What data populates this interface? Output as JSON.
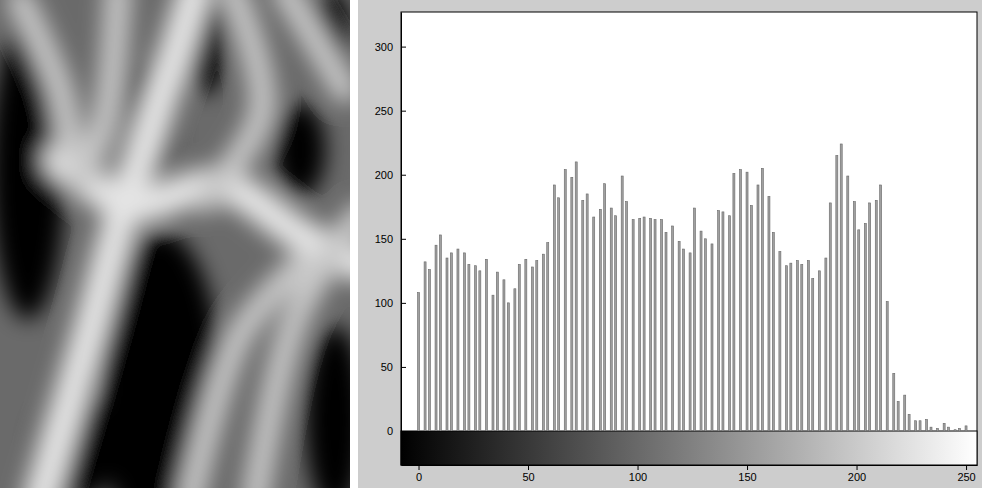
{
  "chart_data": {
    "type": "bar",
    "x": [
      0,
      3,
      5,
      8,
      10,
      13,
      15,
      18,
      21,
      23,
      26,
      28,
      31,
      34,
      36,
      39,
      41,
      44,
      46,
      49,
      52,
      54,
      57,
      59,
      62,
      64,
      67,
      70,
      72,
      75,
      77,
      80,
      83,
      85,
      88,
      90,
      93,
      95,
      98,
      101,
      103,
      106,
      108,
      111,
      113,
      116,
      119,
      121,
      124,
      126,
      129,
      131,
      134,
      137,
      139,
      142,
      144,
      147,
      150,
      152,
      155,
      157,
      160,
      162,
      165,
      168,
      170,
      173,
      175,
      178,
      180,
      183,
      186,
      188,
      191,
      193,
      196,
      199,
      201,
      204,
      206,
      209,
      211,
      214,
      217,
      219,
      222,
      224,
      227,
      229,
      232,
      234,
      237,
      240,
      242,
      245,
      247,
      250
    ],
    "values": [
      108,
      132,
      126,
      145,
      153,
      135,
      139,
      142,
      139,
      130,
      129,
      125,
      134,
      106,
      124,
      118,
      100,
      111,
      130,
      134,
      128,
      133,
      138,
      147,
      192,
      182,
      204,
      198,
      210,
      180,
      185,
      167,
      173,
      193,
      174,
      168,
      199,
      179,
      165,
      166,
      167,
      166,
      165,
      165,
      155,
      160,
      148,
      142,
      139,
      174,
      156,
      150,
      146,
      172,
      171,
      168,
      201,
      204,
      202,
      176,
      192,
      205,
      183,
      155,
      140,
      129,
      131,
      133,
      130,
      133,
      119,
      125,
      135,
      178,
      215,
      224,
      199,
      179,
      157,
      162,
      178,
      180,
      192,
      101,
      45,
      23,
      28,
      13,
      8,
      8,
      9,
      3,
      2,
      6,
      3,
      1,
      2,
      4
    ],
    "color": "#a0a0a0",
    "xlim": [
      -8,
      255
    ],
    "ylim": [
      0,
      327
    ],
    "xticks": [
      0,
      50,
      100,
      150,
      200,
      250
    ],
    "yticks": [
      0,
      50,
      100,
      150,
      200,
      250,
      300
    ],
    "grid": false
  }
}
